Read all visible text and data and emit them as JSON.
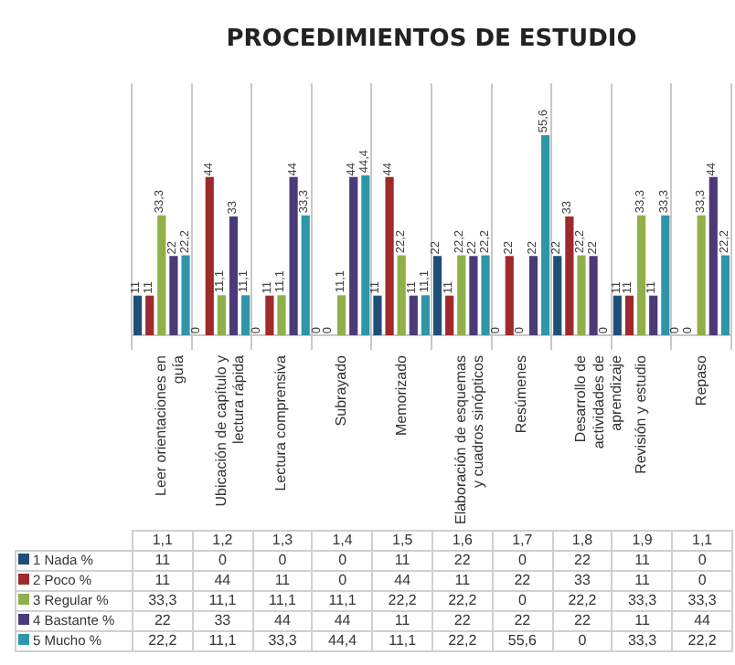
{
  "chart_data": {
    "type": "bar",
    "title": "PROCEDIMIENTOS DE ESTUDIO",
    "categories": [
      "Leer orientaciones en guía",
      "Ubicación de capítulo y lectura rápida",
      "Lectura comprensiva",
      "Subrayado",
      "Memorizado",
      "Elaboración de esquemas y cuadros sinópticos",
      "Resúmenes",
      "Desarrollo de actividades de aprendizaje",
      "Revisión y estudio",
      "Repaso"
    ],
    "series": [
      {
        "name": "1 Nada %",
        "color": "#1f4e79",
        "values": [
          11,
          0,
          0,
          0,
          11,
          22,
          0,
          22,
          11,
          0
        ],
        "value_labels": [
          "11",
          "0",
          "0",
          "0",
          "11",
          "22",
          "0",
          "22",
          "11",
          "0"
        ]
      },
      {
        "name": "2 Poco %",
        "color": "#9e2a2b",
        "values": [
          11,
          44,
          11,
          0,
          44,
          11,
          22,
          33,
          11,
          0
        ],
        "value_labels": [
          "11",
          "44",
          "11",
          "0",
          "44",
          "11",
          "22",
          "33",
          "11",
          "0"
        ]
      },
      {
        "name": "3 Regular %",
        "color": "#8fb04a",
        "values": [
          33.3,
          11.1,
          11.1,
          11.1,
          22.2,
          22.2,
          0,
          22.2,
          33.3,
          33.3
        ],
        "value_labels": [
          "33,3",
          "11,1",
          "11,1",
          "11,1",
          "22,2",
          "22,2",
          "0",
          "22,2",
          "33,3",
          "33,3"
        ]
      },
      {
        "name": "4 Bastante %",
        "color": "#4b3a78",
        "values": [
          22,
          33,
          44,
          44,
          11,
          22,
          22,
          22,
          11,
          44
        ],
        "value_labels": [
          "22",
          "33",
          "44",
          "44",
          "11",
          "22",
          "22",
          "22",
          "11",
          "44"
        ]
      },
      {
        "name": "5 Mucho %",
        "color": "#2e96a8",
        "values": [
          22.2,
          11.1,
          33.3,
          44.4,
          11.1,
          22.2,
          55.6,
          0,
          33.3,
          22.2
        ],
        "value_labels": [
          "22,2",
          "11,1",
          "33,3",
          "44,4",
          "11,1",
          "22,2",
          "55,6",
          "0",
          "33,3",
          "22,2"
        ]
      }
    ],
    "annotations": [
      "1,1",
      "1,2",
      "1,3",
      "1,4",
      "1,5",
      "1,6",
      "1,7",
      "1,8",
      "1,9",
      "1,1"
    ],
    "data_labels": true,
    "grid": "x",
    "legend": "bottom"
  }
}
